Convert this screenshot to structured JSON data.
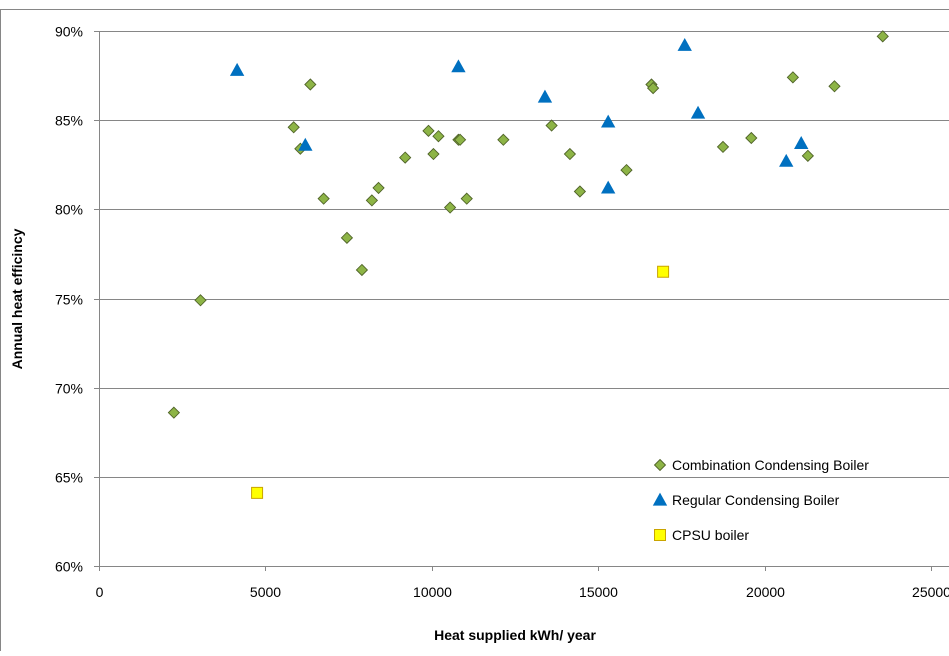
{
  "chart_data": {
    "type": "scatter",
    "title": "",
    "xlabel": "Heat supplied  kWh/ year",
    "ylabel": "Annual heat efficincy",
    "xlim": [
      0,
      25000
    ],
    "ylim": [
      0.6,
      0.9
    ],
    "x_ticks": [
      0,
      5000,
      10000,
      15000,
      20000,
      25000
    ],
    "x_tick_labels": [
      "0",
      "5000",
      "10000",
      "15000",
      "20000",
      "25000"
    ],
    "y_ticks": [
      0.6,
      0.65,
      0.7,
      0.75,
      0.8,
      0.85,
      0.9
    ],
    "y_tick_labels": [
      "60%",
      "65%",
      "70%",
      "75%",
      "80%",
      "85%",
      "90%"
    ],
    "grid": "horizontal",
    "legend_position": "bottom-right",
    "series": [
      {
        "name": "Combination Condensing Boiler",
        "marker": "diamond",
        "color": "#8DB446",
        "stroke": "#4F6228",
        "points": [
          [
            2250,
            0.686
          ],
          [
            3050,
            0.749
          ],
          [
            5850,
            0.846
          ],
          [
            6050,
            0.834
          ],
          [
            6350,
            0.87
          ],
          [
            6750,
            0.806
          ],
          [
            7450,
            0.784
          ],
          [
            7900,
            0.766
          ],
          [
            8200,
            0.805
          ],
          [
            8400,
            0.812
          ],
          [
            9200,
            0.829
          ],
          [
            9900,
            0.844
          ],
          [
            10050,
            0.831
          ],
          [
            10200,
            0.841
          ],
          [
            10550,
            0.801
          ],
          [
            10800,
            0.839
          ],
          [
            10850,
            0.839
          ],
          [
            11050,
            0.806
          ],
          [
            12150,
            0.839
          ],
          [
            13600,
            0.847
          ],
          [
            14150,
            0.831
          ],
          [
            14450,
            0.81
          ],
          [
            15850,
            0.822
          ],
          [
            16600,
            0.87
          ],
          [
            16650,
            0.868
          ],
          [
            18750,
            0.835
          ],
          [
            19600,
            0.84
          ],
          [
            20850,
            0.874
          ],
          [
            21300,
            0.83
          ],
          [
            22100,
            0.869
          ],
          [
            23550,
            0.897
          ]
        ]
      },
      {
        "name": "Regular Condensing Boiler",
        "marker": "triangle",
        "color": "#0070C0",
        "stroke": "#0070C0",
        "points": [
          [
            4150,
            0.878
          ],
          [
            6200,
            0.836
          ],
          [
            10800,
            0.88
          ],
          [
            13400,
            0.863
          ],
          [
            15300,
            0.849
          ],
          [
            15300,
            0.812
          ],
          [
            17600,
            0.892
          ],
          [
            18000,
            0.854
          ],
          [
            20650,
            0.827
          ],
          [
            21100,
            0.837
          ]
        ]
      },
      {
        "name": "CPSU boiler",
        "marker": "square",
        "color": "#FFFF00",
        "stroke": "#C9A400",
        "points": [
          [
            4750,
            0.641
          ],
          [
            16950,
            0.765
          ]
        ]
      }
    ]
  }
}
